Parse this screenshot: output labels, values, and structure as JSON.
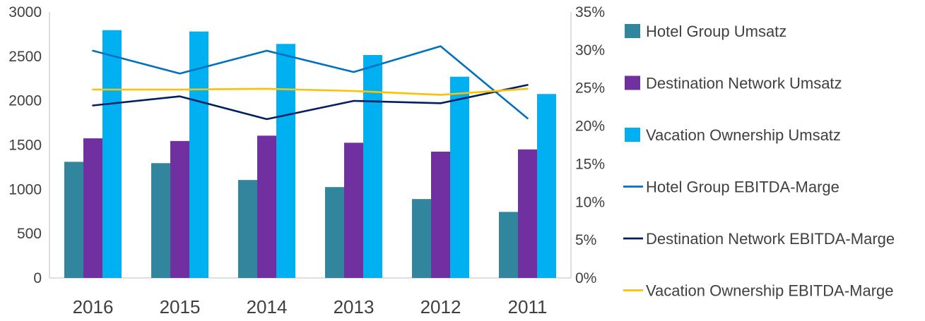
{
  "chart_data": {
    "type": "bar",
    "categories": [
      "2016",
      "2015",
      "2014",
      "2013",
      "2012",
      "2011"
    ],
    "y_left": {
      "ylim": [
        0,
        3000
      ],
      "ticks": [
        "0",
        "500",
        "1000",
        "1500",
        "2000",
        "2500",
        "3000"
      ]
    },
    "y_right": {
      "ylim": [
        0,
        35
      ],
      "ticks": [
        "0%",
        "5%",
        "10%",
        "15%",
        "20%",
        "25%",
        "30%",
        "35%"
      ]
    },
    "grid": false,
    "legend_position": "right",
    "bar_series": [
      {
        "name": "Hotel Group Umsatz",
        "color": "#31859C",
        "values": [
          1310,
          1295,
          1105,
          1025,
          890,
          745
        ]
      },
      {
        "name": "Destination Network Umsatz",
        "color": "#7030A0",
        "values": [
          1575,
          1545,
          1605,
          1525,
          1425,
          1450
        ]
      },
      {
        "name": "Vacation Ownership Umsatz",
        "color": "#00B0F0",
        "values": [
          2795,
          2780,
          2640,
          2515,
          2270,
          2075
        ]
      }
    ],
    "line_series": [
      {
        "name": "Hotel Group EBITDA-Marge",
        "color": "#0070C0",
        "values": [
          29.9,
          26.9,
          29.9,
          27.1,
          30.5,
          21.0
        ]
      },
      {
        "name": "Destination Network EBITDA-Marge",
        "color": "#002060",
        "values": [
          22.7,
          23.9,
          20.9,
          23.3,
          23.0,
          25.4
        ]
      },
      {
        "name": "Vacation Ownership EBITDA-Marge",
        "color": "#FFC000",
        "values": [
          24.8,
          24.8,
          24.9,
          24.6,
          24.1,
          24.9
        ]
      }
    ]
  }
}
